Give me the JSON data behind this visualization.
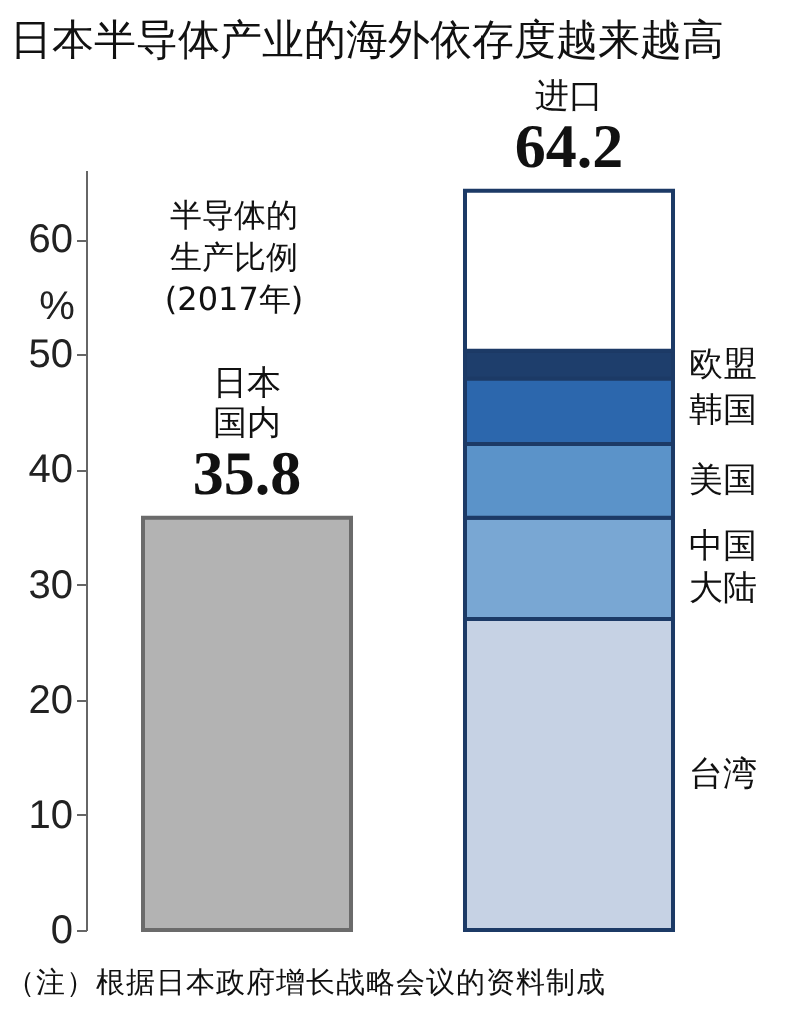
{
  "chart_data": {
    "type": "bar",
    "title": "日本半导体产业的海外依存度越来越高",
    "ylabel": "%",
    "categories": [
      "日本国内",
      "进口"
    ],
    "stacked": true,
    "series": [
      {
        "color": "#b3b3b3",
        "values": [
          35.8,
          null
        ]
      },
      {
        "name": "台湾",
        "color": "#c6d2e4",
        "values": [
          null,
          27.0
        ]
      },
      {
        "name": "中国大陆",
        "color": "#79a7d3",
        "values": [
          null,
          8.8
        ]
      },
      {
        "name": "美国",
        "color": "#5b93c9",
        "values": [
          null,
          6.4
        ]
      },
      {
        "name": "韩国",
        "color": "#2c67ad",
        "values": [
          null,
          5.7
        ]
      },
      {
        "name": "欧盟",
        "color": "#1e3e6c",
        "values": [
          null,
          2.4
        ]
      },
      {
        "color": "#ffffff",
        "values": [
          null,
          13.9
        ]
      }
    ],
    "totals": [
      "35.8",
      "64.2"
    ],
    "ylim": [
      0,
      66
    ],
    "yticks": [
      0,
      10,
      20,
      30,
      40,
      50,
      60
    ],
    "annotations": [
      "半导体的生产比例(2017年)",
      "（注）根据日本政府增长战略会议的资料制成"
    ]
  }
}
